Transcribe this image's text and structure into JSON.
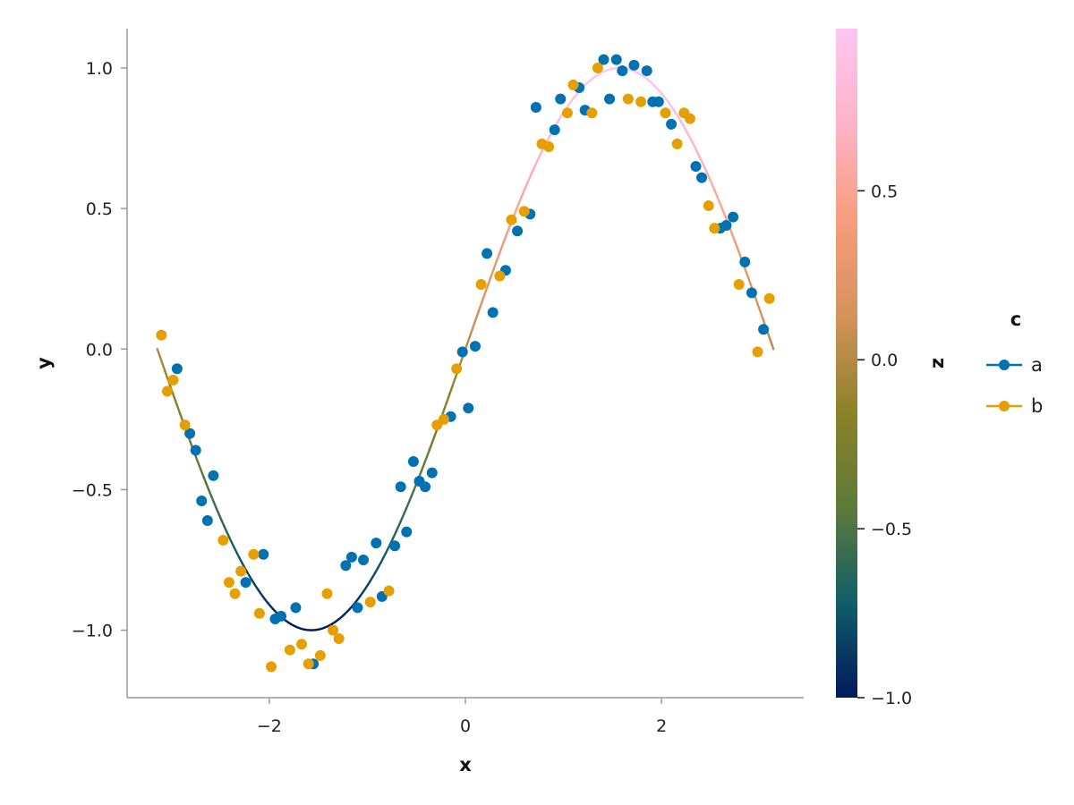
{
  "chart_data": {
    "type": "scatter",
    "xlabel": "x",
    "ylabel": "y",
    "xlim": [
      -3.45,
      3.45
    ],
    "ylim": [
      -1.24,
      1.14
    ],
    "x_ticks": [
      -2,
      0,
      2
    ],
    "x_tick_labels": [
      "−2",
      "0",
      "2"
    ],
    "y_ticks": [
      -1.0,
      -0.5,
      0.0,
      0.5,
      1.0
    ],
    "y_tick_labels": [
      "−1.0",
      "−0.5",
      "0.0",
      "0.5",
      "1.0"
    ],
    "grid": false,
    "curve": {
      "function": "sin(x)",
      "x_range": [
        -3.1416,
        3.1416
      ],
      "color_by": "z"
    },
    "colorbar": {
      "label": "z",
      "range": [
        -1.0,
        0.98
      ],
      "ticks": [
        -1.0,
        -0.5,
        0.0,
        0.5
      ],
      "tick_labels": [
        "−1.0",
        "−0.5",
        "0.0",
        "0.5"
      ],
      "colors": [
        "#001a5c",
        "#125e6a",
        "#5f7a3a",
        "#8c8228",
        "#d4925c",
        "#f79c7c",
        "#ffb3c8",
        "#fdc6f2"
      ]
    },
    "legend": {
      "title": "c",
      "placement": "right"
    },
    "series": [
      {
        "name": "a",
        "color": "#0072b2",
        "points": [
          [
            -2.94,
            -0.07
          ],
          [
            -2.81,
            -0.3
          ],
          [
            -2.75,
            -0.36
          ],
          [
            -2.69,
            -0.54
          ],
          [
            -2.63,
            -0.61
          ],
          [
            -2.57,
            -0.45
          ],
          [
            -2.24,
            -0.83
          ],
          [
            -2.06,
            -0.73
          ],
          [
            -1.94,
            -0.96
          ],
          [
            -1.88,
            -0.95
          ],
          [
            -1.73,
            -0.92
          ],
          [
            -1.55,
            -1.12
          ],
          [
            -1.22,
            -0.77
          ],
          [
            -1.16,
            -0.74
          ],
          [
            -1.1,
            -0.92
          ],
          [
            -1.04,
            -0.75
          ],
          [
            -0.91,
            -0.69
          ],
          [
            -0.85,
            -0.88
          ],
          [
            -0.72,
            -0.7
          ],
          [
            -0.66,
            -0.49
          ],
          [
            -0.6,
            -0.65
          ],
          [
            -0.53,
            -0.4
          ],
          [
            -0.47,
            -0.47
          ],
          [
            -0.41,
            -0.49
          ],
          [
            -0.34,
            -0.44
          ],
          [
            -0.15,
            -0.24
          ],
          [
            -0.03,
            -0.01
          ],
          [
            0.03,
            -0.21
          ],
          [
            0.1,
            0.01
          ],
          [
            0.22,
            0.34
          ],
          [
            0.28,
            0.13
          ],
          [
            0.41,
            0.28
          ],
          [
            0.53,
            0.42
          ],
          [
            0.66,
            0.48
          ],
          [
            0.72,
            0.86
          ],
          [
            0.91,
            0.78
          ],
          [
            0.97,
            0.89
          ],
          [
            1.16,
            0.93
          ],
          [
            1.22,
            0.85
          ],
          [
            1.41,
            1.03
          ],
          [
            1.47,
            0.89
          ],
          [
            1.54,
            1.03
          ],
          [
            1.6,
            0.99
          ],
          [
            1.72,
            1.01
          ],
          [
            1.85,
            0.99
          ],
          [
            1.91,
            0.88
          ],
          [
            1.97,
            0.88
          ],
          [
            2.1,
            0.8
          ],
          [
            2.35,
            0.65
          ],
          [
            2.41,
            0.61
          ],
          [
            2.6,
            0.43
          ],
          [
            2.66,
            0.44
          ],
          [
            2.73,
            0.47
          ],
          [
            2.85,
            0.31
          ],
          [
            2.92,
            0.2
          ],
          [
            3.04,
            0.07
          ]
        ]
      },
      {
        "name": "b",
        "color": "#e69f00",
        "points": [
          [
            -3.1,
            0.05
          ],
          [
            -3.04,
            -0.15
          ],
          [
            -2.98,
            -0.11
          ],
          [
            -2.86,
            -0.27
          ],
          [
            -2.47,
            -0.68
          ],
          [
            -2.41,
            -0.83
          ],
          [
            -2.35,
            -0.87
          ],
          [
            -2.29,
            -0.79
          ],
          [
            -2.16,
            -0.73
          ],
          [
            -2.1,
            -0.94
          ],
          [
            -1.98,
            -1.13
          ],
          [
            -1.79,
            -1.07
          ],
          [
            -1.67,
            -1.05
          ],
          [
            -1.6,
            -1.12
          ],
          [
            -1.48,
            -1.09
          ],
          [
            -1.41,
            -0.87
          ],
          [
            -1.35,
            -1.0
          ],
          [
            -1.29,
            -1.03
          ],
          [
            -0.97,
            -0.9
          ],
          [
            -0.78,
            -0.86
          ],
          [
            -0.09,
            -0.07
          ],
          [
            -0.29,
            -0.27
          ],
          [
            -0.22,
            -0.25
          ],
          [
            0.16,
            0.23
          ],
          [
            0.35,
            0.26
          ],
          [
            0.47,
            0.46
          ],
          [
            0.6,
            0.49
          ],
          [
            0.78,
            0.73
          ],
          [
            0.85,
            0.72
          ],
          [
            1.04,
            0.84
          ],
          [
            1.1,
            0.94
          ],
          [
            1.29,
            0.84
          ],
          [
            1.35,
            1.0
          ],
          [
            1.66,
            0.89
          ],
          [
            1.79,
            0.88
          ],
          [
            2.04,
            0.84
          ],
          [
            2.16,
            0.73
          ],
          [
            2.23,
            0.84
          ],
          [
            2.29,
            0.82
          ],
          [
            2.48,
            0.51
          ],
          [
            2.54,
            0.43
          ],
          [
            2.79,
            0.23
          ],
          [
            2.98,
            -0.01
          ],
          [
            3.1,
            0.18
          ]
        ]
      }
    ]
  }
}
